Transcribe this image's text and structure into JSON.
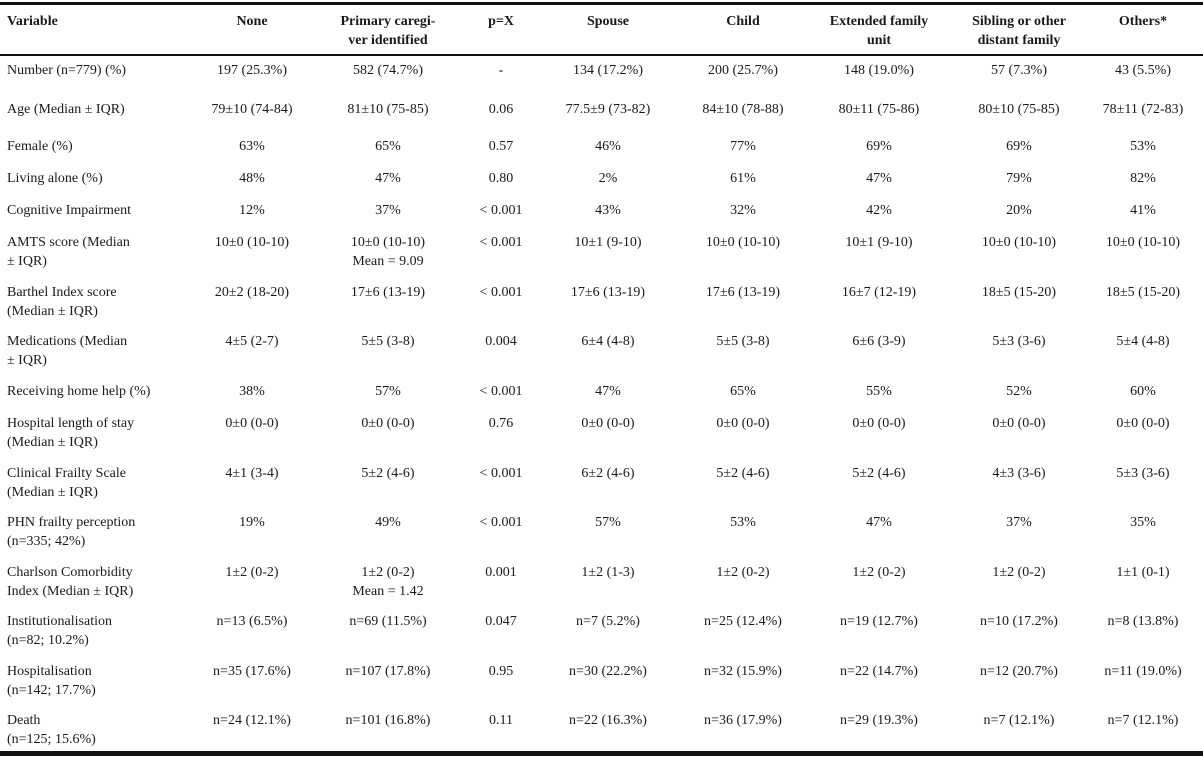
{
  "table": {
    "headers": [
      [
        "Variable"
      ],
      [
        "None"
      ],
      [
        "Primary caregi-",
        "ver identified"
      ],
      [
        "p=X"
      ],
      [
        "Spouse"
      ],
      [
        "Child"
      ],
      [
        "Extended family",
        "unit"
      ],
      [
        "Sibling or other",
        "distant family"
      ],
      [
        "Others*"
      ]
    ],
    "rows": [
      {
        "label": [
          "Number (n=779) (%)"
        ],
        "cells": [
          [
            "197 (25.3%)"
          ],
          [
            "582 (74.7%)"
          ],
          [
            "-"
          ],
          [
            "134 (17.2%)"
          ],
          [
            "200 (25.7%)"
          ],
          [
            "148 (19.0%)"
          ],
          [
            "57 (7.3%)"
          ],
          [
            "43 (5.5%)"
          ]
        ]
      },
      {
        "label": [
          "Age (Median ± IQR)"
        ],
        "cells": [
          [
            "79±10 (74-84)"
          ],
          [
            "81±10 (75-85)"
          ],
          [
            "0.06"
          ],
          [
            "77.5±9 (73-82)"
          ],
          [
            "84±10 (78-88)"
          ],
          [
            "80±11 (75-86)"
          ],
          [
            "80±10 (75-85)"
          ],
          [
            "78±11 (72-83)"
          ]
        ]
      },
      {
        "label": [
          "Female (%)"
        ],
        "cells": [
          [
            "63%"
          ],
          [
            "65%"
          ],
          [
            "0.57"
          ],
          [
            "46%"
          ],
          [
            "77%"
          ],
          [
            "69%"
          ],
          [
            "69%"
          ],
          [
            "53%"
          ]
        ]
      },
      {
        "label": [
          "Living alone (%)"
        ],
        "cells": [
          [
            "48%"
          ],
          [
            "47%"
          ],
          [
            "0.80"
          ],
          [
            "2%"
          ],
          [
            "61%"
          ],
          [
            "47%"
          ],
          [
            "79%"
          ],
          [
            "82%"
          ]
        ]
      },
      {
        "label": [
          "Cognitive Impairment"
        ],
        "cells": [
          [
            "12%"
          ],
          [
            "37%"
          ],
          [
            "< 0.001"
          ],
          [
            "43%"
          ],
          [
            "32%"
          ],
          [
            "42%"
          ],
          [
            "20%"
          ],
          [
            "41%"
          ]
        ]
      },
      {
        "label": [
          "AMTS score (Median",
          "± IQR)"
        ],
        "cells": [
          [
            "10±0 (10-10)"
          ],
          [
            "10±0 (10-10)",
            "Mean = 9.09"
          ],
          [
            "< 0.001"
          ],
          [
            "10±1 (9-10)"
          ],
          [
            "10±0 (10-10)"
          ],
          [
            "10±1 (9-10)"
          ],
          [
            "10±0 (10-10)"
          ],
          [
            "10±0 (10-10)"
          ]
        ]
      },
      {
        "label": [
          "Barthel Index score",
          "(Median ± IQR)"
        ],
        "cells": [
          [
            "20±2 (18-20)"
          ],
          [
            "17±6 (13-19)"
          ],
          [
            "< 0.001"
          ],
          [
            "17±6 (13-19)"
          ],
          [
            "17±6 (13-19)"
          ],
          [
            "16±7 (12-19)"
          ],
          [
            "18±5 (15-20)"
          ],
          [
            "18±5 (15-20)"
          ]
        ]
      },
      {
        "label": [
          "Medications  (Median",
          "± IQR)"
        ],
        "cells": [
          [
            "4±5 (2-7)"
          ],
          [
            "5±5 (3-8)"
          ],
          [
            "0.004"
          ],
          [
            "6±4 (4-8)"
          ],
          [
            "5±5 (3-8)"
          ],
          [
            "6±6 (3-9)"
          ],
          [
            "5±3 (3-6)"
          ],
          [
            "5±4 (4-8)"
          ]
        ]
      },
      {
        "label": [
          "Receiving home help (%)"
        ],
        "cells": [
          [
            "38%"
          ],
          [
            "57%"
          ],
          [
            "< 0.001"
          ],
          [
            "47%"
          ],
          [
            "65%"
          ],
          [
            "55%"
          ],
          [
            "52%"
          ],
          [
            "60%"
          ]
        ]
      },
      {
        "label": [
          "Hospital length of stay",
          "(Median ± IQR)"
        ],
        "cells": [
          [
            "0±0 (0-0)"
          ],
          [
            "0±0 (0-0)"
          ],
          [
            "0.76"
          ],
          [
            "0±0 (0-0)"
          ],
          [
            "0±0 (0-0)"
          ],
          [
            "0±0 (0-0)"
          ],
          [
            "0±0 (0-0)"
          ],
          [
            "0±0 (0-0)"
          ]
        ]
      },
      {
        "label": [
          "Clinical Frailty Scale",
          "(Median ± IQR)"
        ],
        "cells": [
          [
            "4±1 (3-4)"
          ],
          [
            "5±2 (4-6)"
          ],
          [
            "< 0.001"
          ],
          [
            "6±2 (4-6)"
          ],
          [
            "5±2 (4-6)"
          ],
          [
            "5±2 (4-6)"
          ],
          [
            "4±3 (3-6)"
          ],
          [
            "5±3 (3-6)"
          ]
        ]
      },
      {
        "label": [
          "PHN frailty perception",
          "(n=335; 42%)"
        ],
        "cells": [
          [
            "19%"
          ],
          [
            "49%"
          ],
          [
            "< 0.001"
          ],
          [
            "57%"
          ],
          [
            "53%"
          ],
          [
            "47%"
          ],
          [
            "37%"
          ],
          [
            "35%"
          ]
        ]
      },
      {
        "label": [
          "Charlson Comorbidity",
          "Index (Median ± IQR)"
        ],
        "cells": [
          [
            "1±2 (0-2)"
          ],
          [
            "1±2 (0-2)",
            "Mean = 1.42"
          ],
          [
            "0.001"
          ],
          [
            "1±2 (1-3)"
          ],
          [
            "1±2 (0-2)"
          ],
          [
            "1±2 (0-2)"
          ],
          [
            "1±2 (0-2)"
          ],
          [
            "1±1 (0-1)"
          ]
        ]
      },
      {
        "label": [
          "Institutionalisation",
          "(n=82; 10.2%)"
        ],
        "cells": [
          [
            "n=13 (6.5%)"
          ],
          [
            "n=69 (11.5%)"
          ],
          [
            "0.047"
          ],
          [
            "n=7 (5.2%)"
          ],
          [
            "n=25 (12.4%)"
          ],
          [
            "n=19 (12.7%)"
          ],
          [
            "n=10 (17.2%)"
          ],
          [
            "n=8 (13.8%)"
          ]
        ]
      },
      {
        "label": [
          "Hospitalisation",
          "(n=142; 17.7%)"
        ],
        "cells": [
          [
            "n=35 (17.6%)"
          ],
          [
            "n=107 (17.8%)"
          ],
          [
            "0.95"
          ],
          [
            "n=30 (22.2%)"
          ],
          [
            "n=32 (15.9%)"
          ],
          [
            "n=22 (14.7%)"
          ],
          [
            "n=12 (20.7%)"
          ],
          [
            "n=11 (19.0%)"
          ]
        ]
      },
      {
        "label": [
          "Death",
          "(n=125; 15.6%)"
        ],
        "cells": [
          [
            "n=24 (12.1%)"
          ],
          [
            "n=101 (16.8%)"
          ],
          [
            "0.11"
          ],
          [
            "n=22 (16.3%)"
          ],
          [
            "n=36 (17.9%)"
          ],
          [
            "n=29 (19.3%)"
          ],
          [
            "n=7 (12.1%)"
          ],
          [
            "n=7 (12.1%)"
          ]
        ]
      }
    ]
  }
}
